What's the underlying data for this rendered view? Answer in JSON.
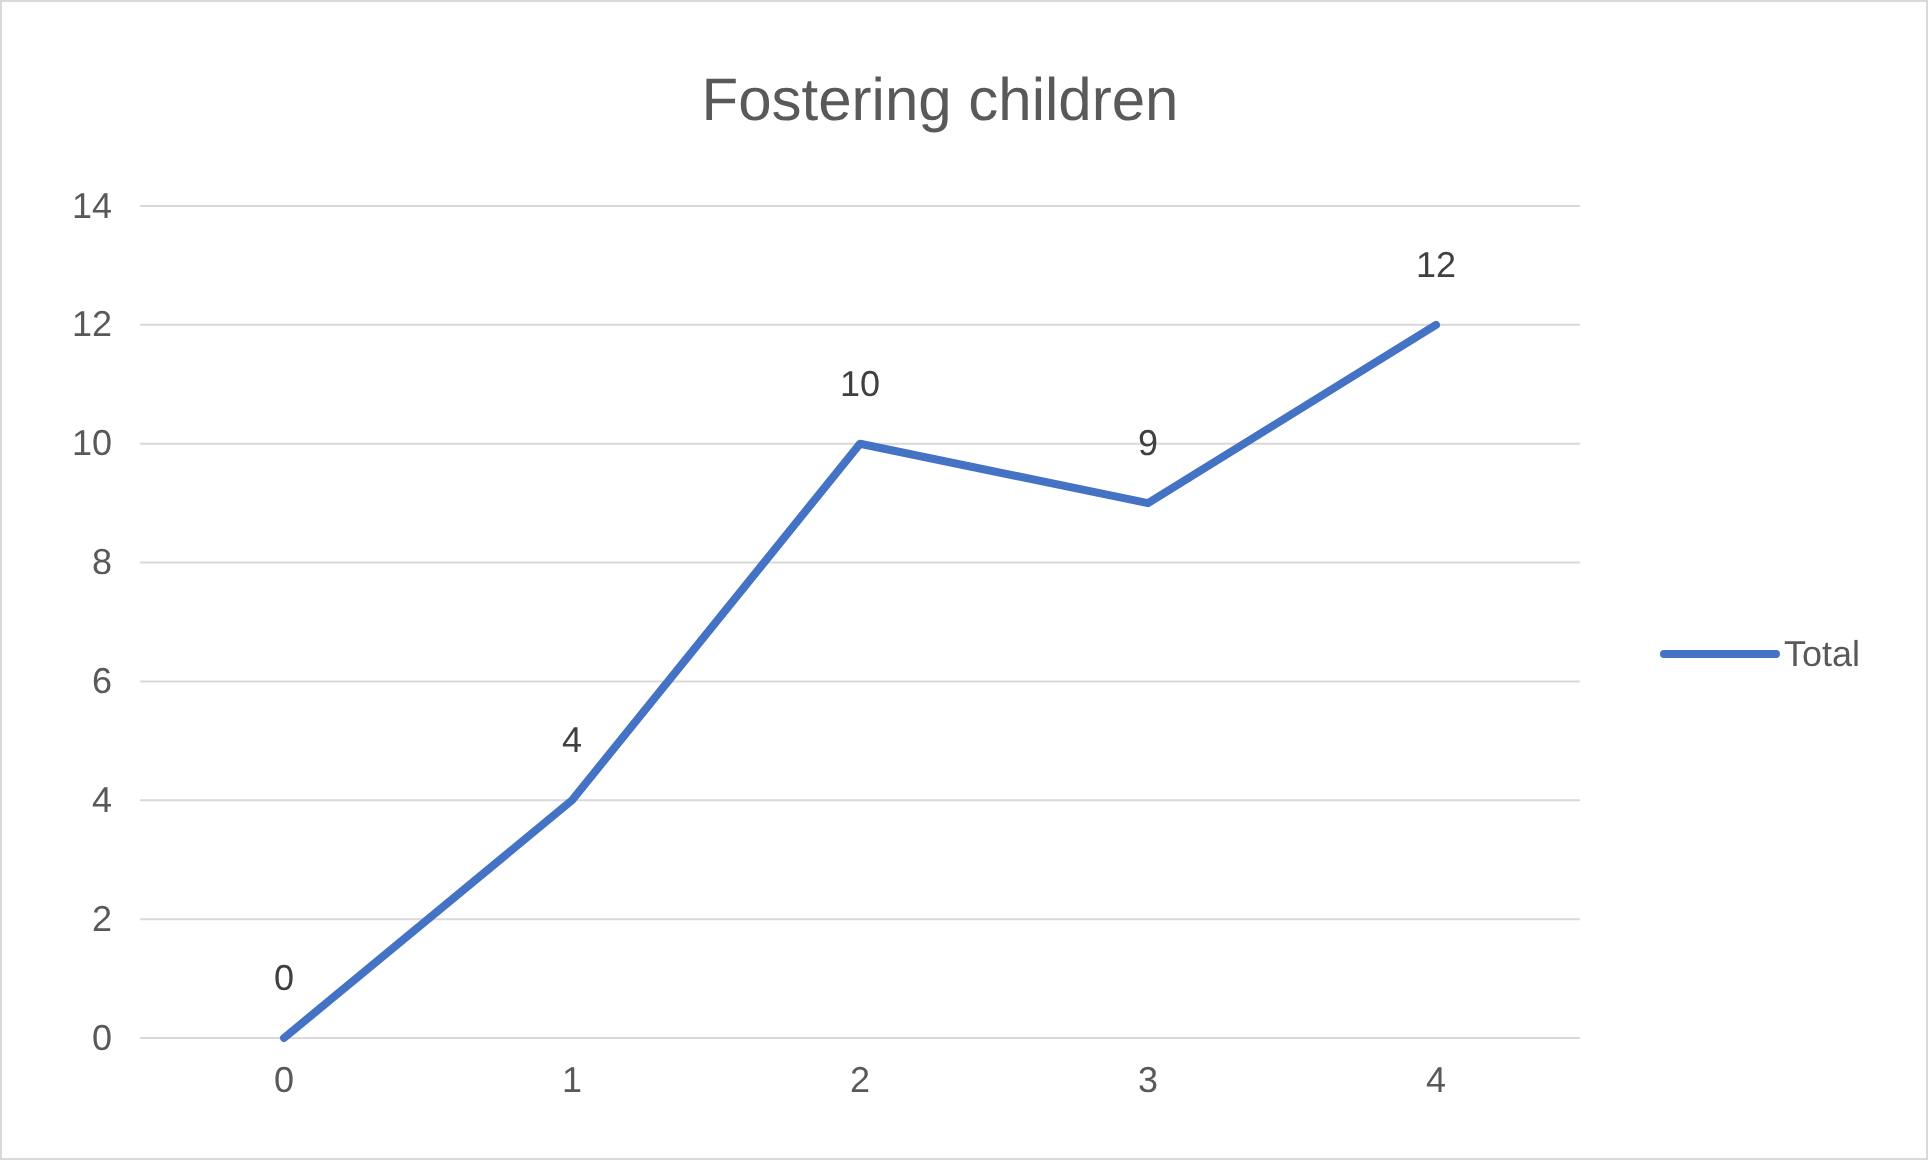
{
  "chart_data": {
    "type": "line",
    "title": "Fostering children",
    "categories": [
      "0",
      "1",
      "2",
      "3",
      "4"
    ],
    "series": [
      {
        "name": "Total",
        "color": "#4472c4",
        "values": [
          0,
          4,
          10,
          9,
          12
        ]
      }
    ],
    "ylim": [
      0,
      14
    ],
    "yticks": [
      0,
      2,
      4,
      6,
      8,
      10,
      12,
      14
    ],
    "grid": "y",
    "legend": "right",
    "data_labels": true,
    "marker": "none",
    "line_style": "solid"
  }
}
